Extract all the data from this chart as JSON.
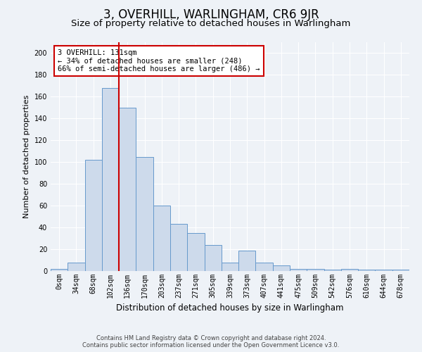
{
  "title": "3, OVERHILL, WARLINGHAM, CR6 9JR",
  "subtitle": "Size of property relative to detached houses in Warlingham",
  "xlabel": "Distribution of detached houses by size in Warlingham",
  "ylabel": "Number of detached properties",
  "categories": [
    "0sqm",
    "34sqm",
    "68sqm",
    "102sqm",
    "136sqm",
    "170sqm",
    "203sqm",
    "237sqm",
    "271sqm",
    "305sqm",
    "339sqm",
    "373sqm",
    "407sqm",
    "441sqm",
    "475sqm",
    "509sqm",
    "542sqm",
    "576sqm",
    "610sqm",
    "644sqm",
    "678sqm"
  ],
  "values": [
    2,
    8,
    102,
    168,
    150,
    105,
    60,
    43,
    35,
    24,
    8,
    19,
    8,
    5,
    2,
    2,
    1,
    2,
    1,
    1,
    1
  ],
  "bar_color": "#cddaeb",
  "bar_edge_color": "#6699cc",
  "vline_x": 3.5,
  "vline_color": "#cc0000",
  "annotation_line1": "3 OVERHILL: 131sqm",
  "annotation_line2": "← 34% of detached houses are smaller (248)",
  "annotation_line3": "66% of semi-detached houses are larger (486) →",
  "annotation_box_color": "#ffffff",
  "annotation_box_edge": "#cc0000",
  "ylim": [
    0,
    210
  ],
  "yticks": [
    0,
    20,
    40,
    60,
    80,
    100,
    120,
    140,
    160,
    180,
    200
  ],
  "footer1": "Contains HM Land Registry data © Crown copyright and database right 2024.",
  "footer2": "Contains public sector information licensed under the Open Government Licence v3.0.",
  "bg_color": "#eef2f7",
  "plot_bg_color": "#eef2f7",
  "grid_color": "#ffffff",
  "title_fontsize": 12,
  "subtitle_fontsize": 9.5,
  "xlabel_fontsize": 8.5,
  "ylabel_fontsize": 8,
  "tick_fontsize": 7,
  "annotation_fontsize": 7.5,
  "footer_fontsize": 6
}
